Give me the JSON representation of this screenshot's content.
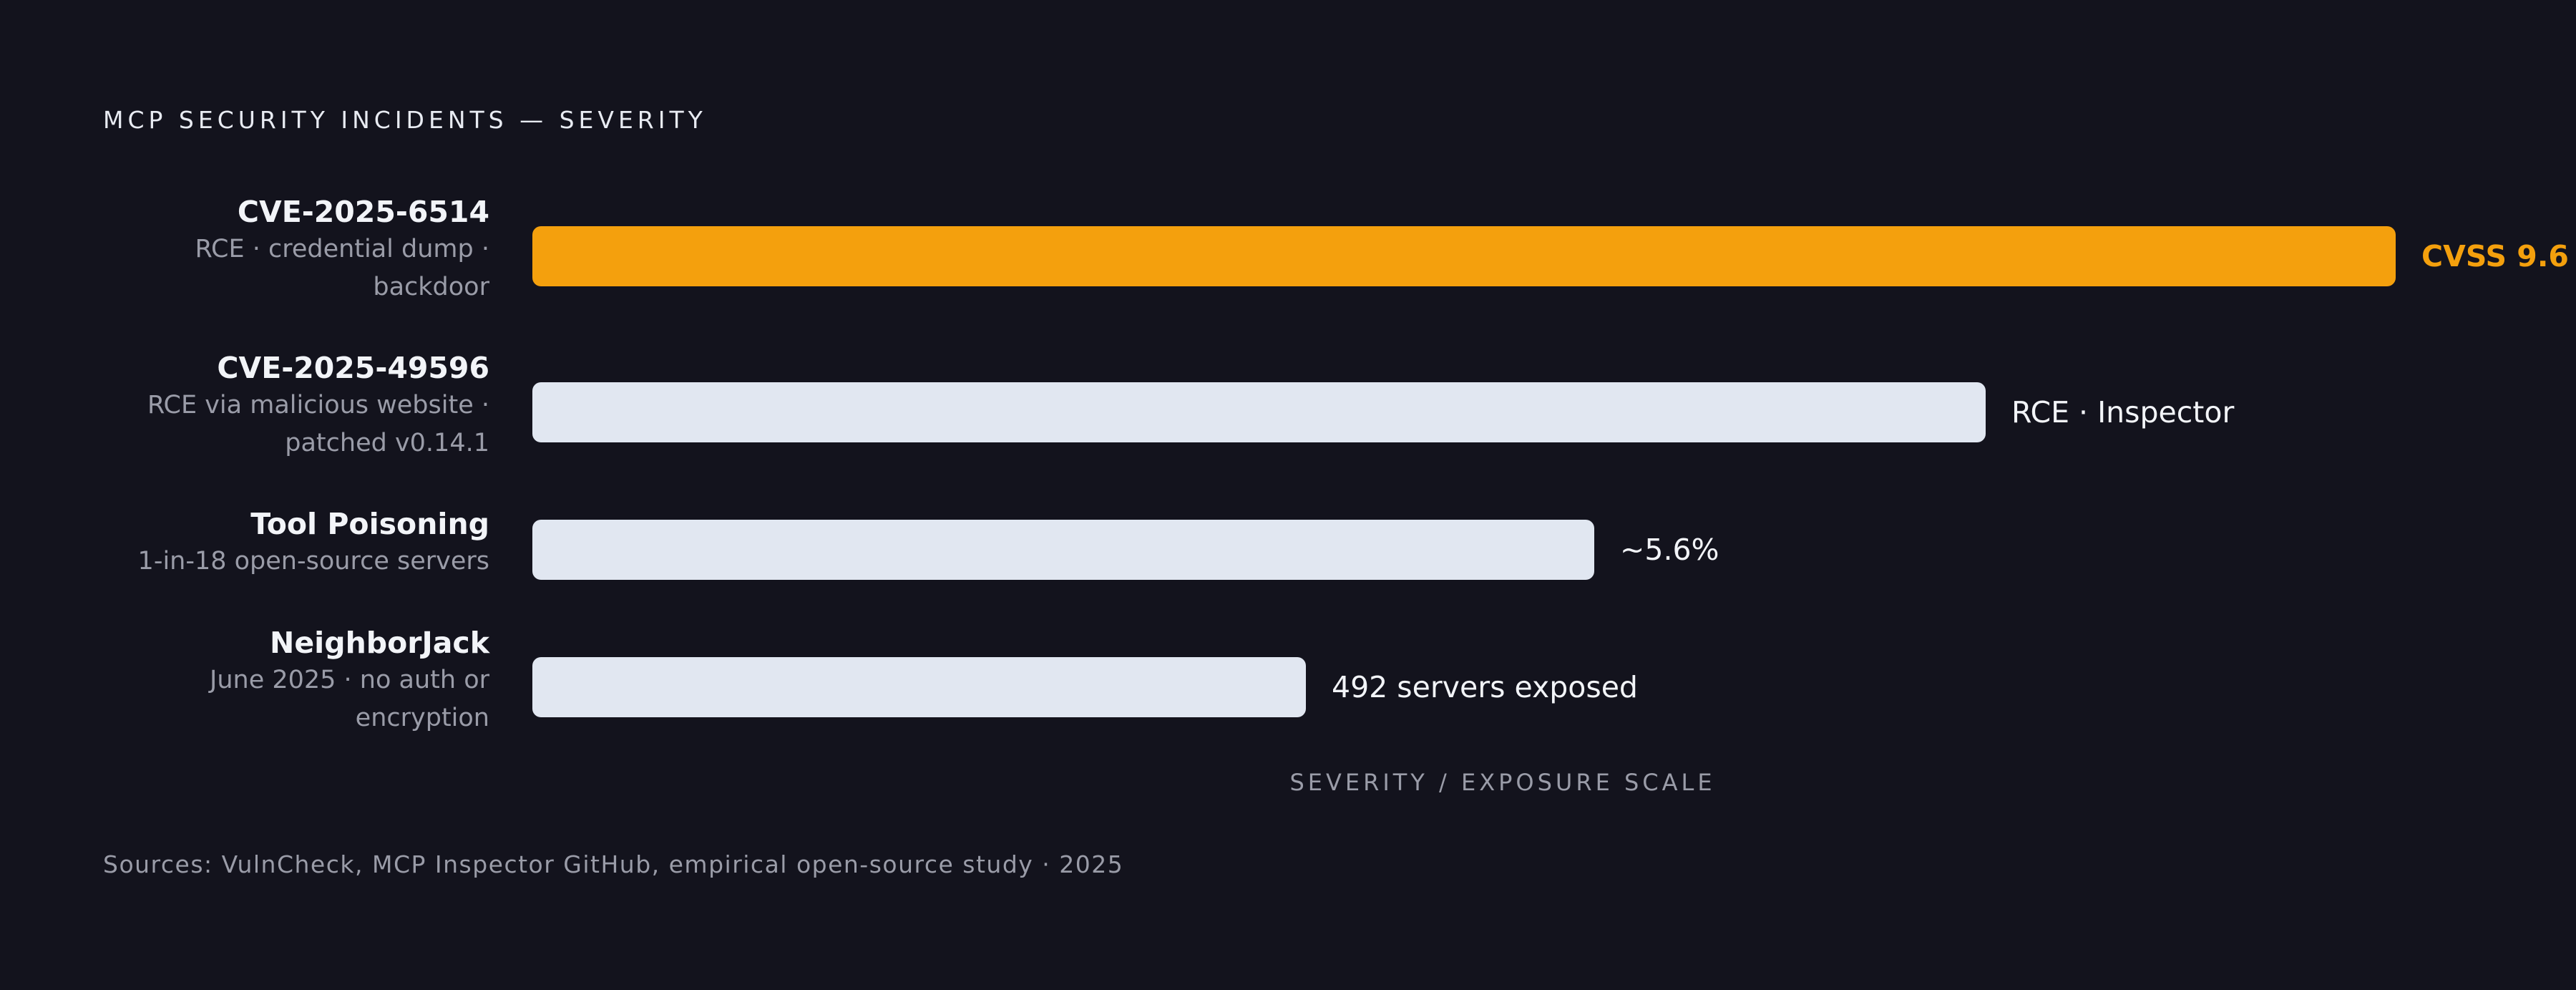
{
  "chart_data": {
    "type": "bar",
    "orientation": "horizontal",
    "title": "MCP SECURITY INCIDENTS — SEVERITY",
    "xlabel": "SEVERITY / EXPOSURE SCALE",
    "ylabel": "",
    "xlim": [
      0,
      100
    ],
    "grid": false,
    "legend": "none",
    "categories": [
      {
        "name": "CVE-2025-6514",
        "sub": "RCE · credential dump · backdoor"
      },
      {
        "name": "CVE-2025-49596",
        "sub": "RCE via malicious website · patched v0.14.1"
      },
      {
        "name": "Tool Poisoning",
        "sub": "1-in-18 open-source servers"
      },
      {
        "name": "NeighborJack",
        "sub": "June 2025 · no auth or encryption"
      }
    ],
    "values": [
      100,
      78,
      57,
      41.5
    ],
    "data_labels": [
      "CVSS 9.6",
      "RCE · Inspector",
      "~5.6%",
      "492 servers exposed"
    ],
    "colors": [
      "#f4a00d",
      "#e1e7f1",
      "#e1e7f1",
      "#e1e7f1"
    ],
    "label_colors": [
      "#f4a00d",
      "#f2f4f8",
      "#f2f4f8",
      "#f2f4f8"
    ],
    "label_bold": [
      true,
      false,
      false,
      false
    ]
  },
  "footer": {
    "sources": "Sources: VulnCheck, MCP Inspector GitHub, empirical open-source study · 2025"
  }
}
